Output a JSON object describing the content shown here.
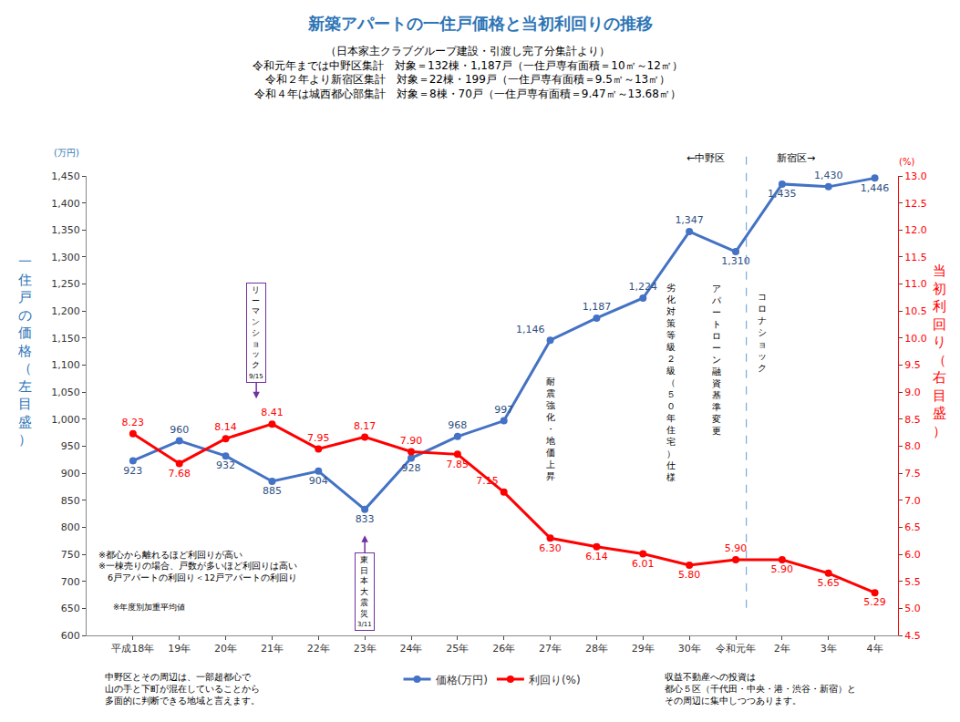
{
  "chart_data": {
    "type": "line",
    "title": "新築アパートの一住戸価格と当初利回りの推移",
    "subtitle": [
      "（日本家主クラブグループ建設・引渡し完了分集計より）",
      "令和元年までは中野区集計　対象＝132棟・1,187戸（一住戸専有面積＝10㎡～12㎡）",
      "令和２年より新宿区集計　対象＝22棟・199戸（一住戸専有面積＝9.5㎡～13㎡）",
      "令和４年は城西都心部集計　対象＝8棟・70戸（一住戸専有面積＝9.47㎡～13.68㎡）"
    ],
    "categories": [
      "平成18年",
      "19年",
      "20年",
      "21年",
      "22年",
      "23年",
      "24年",
      "25年",
      "26年",
      "27年",
      "28年",
      "29年",
      "30年",
      "令和元年",
      "2年",
      "3年",
      "4年"
    ],
    "series": [
      {
        "name": "価格(万円)",
        "color": "#4472C4",
        "marker": "circle",
        "line_style": "solid",
        "values": [
          923,
          960,
          932,
          885,
          904,
          833,
          928,
          968,
          997,
          1146,
          1187,
          1224,
          1347,
          1310,
          1435,
          1430,
          1446
        ],
        "value_labels": [
          "923",
          "960",
          "932",
          "885",
          "904",
          "833",
          "928",
          "968",
          "997",
          "1,146",
          "1,187",
          "1,224",
          "1,347",
          "1,310",
          "1,435",
          "1,430",
          "1,446"
        ]
      },
      {
        "name": "利回り(%)",
        "color": "#FF0000",
        "marker": "circle",
        "line_style": "solid",
        "axis": "y2",
        "values": [
          8.23,
          7.68,
          8.14,
          8.41,
          7.95,
          8.17,
          7.9,
          7.85,
          7.15,
          6.3,
          6.14,
          6.01,
          5.8,
          5.9,
          5.9,
          5.65,
          5.29
        ],
        "value_labels": [
          "8.23",
          "7.68",
          "8.14",
          "8.41",
          "7.95",
          "8.17",
          "7.90",
          "7.85",
          "7.15",
          "6.30",
          "6.14",
          "6.01",
          "5.80",
          "5.90",
          "5.90",
          "5.65",
          "5.29"
        ]
      }
    ],
    "y_label": "一住戸の価格（左目盛）",
    "y2_label": "当初利回り（右目盛）",
    "y_unit": "(万円)",
    "y2_unit": "(%)",
    "ylim": [
      600,
      1450
    ],
    "yticks": [
      600,
      650,
      700,
      750,
      800,
      850,
      900,
      950,
      {
        "value": 1000,
        "label": "1,000"
      },
      {
        "value": 1050,
        "label": "1,050"
      },
      {
        "value": 1100,
        "label": "1,100"
      },
      {
        "value": 1150,
        "label": "1,150"
      },
      {
        "value": 1200,
        "label": "1,200"
      },
      {
        "value": 1250,
        "label": "1,250"
      },
      {
        "value": 1300,
        "label": "1,300"
      },
      {
        "value": 1350,
        "label": "1,350"
      },
      {
        "value": 1400,
        "label": "1,400"
      },
      {
        "value": 1450,
        "label": "1,450"
      }
    ],
    "y2lim": [
      4.5,
      13.0
    ],
    "y2ticks": [
      4.5,
      {
        "value": 5.0,
        "label": "5.0"
      },
      5.5,
      {
        "value": 6.0,
        "label": "6.0"
      },
      6.5,
      {
        "value": 7.0,
        "label": "7.0"
      },
      7.5,
      {
        "value": 8.0,
        "label": "8.0"
      },
      8.5,
      {
        "value": 9.0,
        "label": "9.0"
      },
      9.5,
      {
        "value": 10.0,
        "label": "10.0"
      },
      10.5,
      {
        "value": 11.0,
        "label": "11.0"
      },
      11.5,
      {
        "value": 12.0,
        "label": "12.0"
      },
      12.5,
      {
        "value": 13.0,
        "label": "13.0"
      }
    ],
    "grid": false,
    "legend": "bottom",
    "data_labels": true,
    "events": [
      {
        "text": "リーマンショック",
        "date": "9/15"
      },
      {
        "text": "東日本大震災",
        "date": "3/11"
      }
    ],
    "vertical_notes": [
      "耐震強化・地価上昇",
      "劣化対策等級２級（５０年住宅）仕様",
      "アパートローン融資基準変更",
      "コロナショック"
    ],
    "region_labels": [
      "←中野区",
      "新宿区→"
    ],
    "notes": [
      "※都心から離れるほど利回りが高い",
      "※一棟売りの場合、戸数が多いほど利回りは高い",
      "　6戸アパートの利回り＜12戸アパートの利回り"
    ],
    "note_average": "※年度別加重平均値",
    "footnote_left": [
      "中野区とその周辺は、一部超都心で",
      "山の手と下町が混在していることから",
      "多面的に判断できる地域と言えます。"
    ],
    "footnote_right": [
      "収益不動産への投資は",
      "都心５区（千代田・中央・港・渋谷・新宿）と",
      "その周辺に集中しつつあります。"
    ]
  }
}
